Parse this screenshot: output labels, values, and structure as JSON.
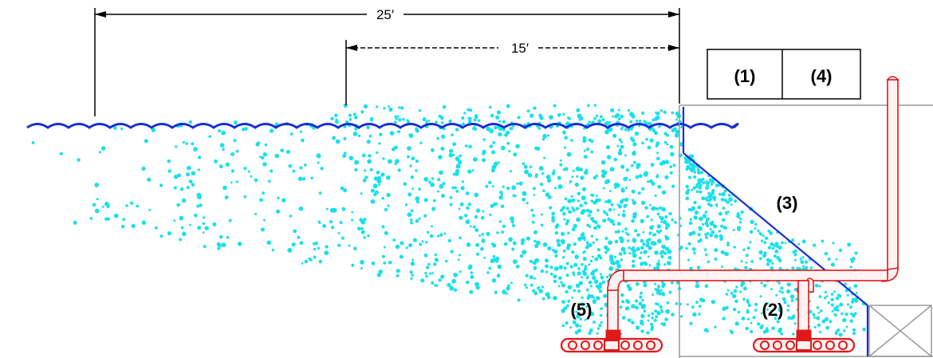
{
  "dimensions": {
    "outer": "25′",
    "inner": "15′"
  },
  "callouts": {
    "c1": "(1)",
    "c2": "(2)",
    "c3": "(3)",
    "c4": "(4)",
    "c5": "(5)"
  },
  "colors": {
    "water_surface": "#1a2fd0",
    "bubbles": "#19e0ea",
    "pipe": "#e01818",
    "pipe_fill": "#fff2f2",
    "structure": "#999999",
    "ramp": "#1a2fd0",
    "dimension_line": "#000000"
  }
}
